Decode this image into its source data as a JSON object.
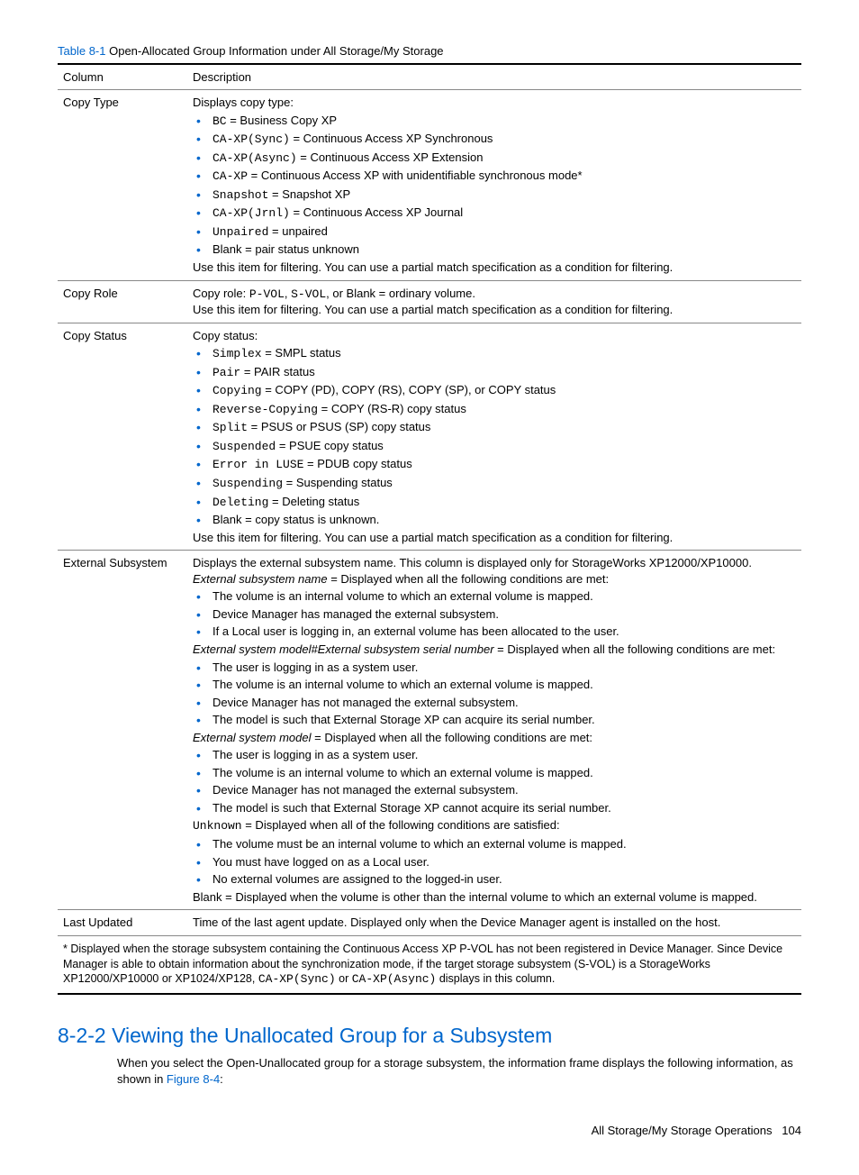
{
  "caption": {
    "ref": "Table 8-1",
    "title": "  Open-Allocated Group Information under All Storage/My Storage"
  },
  "headers": {
    "c1": "Column",
    "c2": "Description"
  },
  "rows": {
    "copyType": {
      "label": "Copy Type",
      "intro": "Displays copy type:",
      "items": {
        "i0": {
          "code": "BC",
          "text": " = Business Copy XP"
        },
        "i1": {
          "code": "CA-XP(Sync)",
          "text": " = Continuous Access XP Synchronous"
        },
        "i2": {
          "code": "CA-XP(Async)",
          "text": " = Continuous Access XP Extension"
        },
        "i3": {
          "code": "CA-XP",
          "text": " = Continuous Access XP with unidentifiable synchronous mode*"
        },
        "i4": {
          "code": "Snapshot",
          "text": " = Snapshot XP"
        },
        "i5": {
          "code": "CA-XP(Jrnl)",
          "text": " = Continuous Access XP Journal"
        },
        "i6": {
          "code": "Unpaired",
          "text": " = unpaired"
        },
        "i7": {
          "text": "Blank = pair status unknown"
        }
      },
      "tail": "Use this item for filtering. You can use a partial match specification as a condition for filtering."
    },
    "copyRole": {
      "label": "Copy Role",
      "pre": "Copy role: ",
      "c1": "P-VOL",
      "mid1": ", ",
      "c2": "S-VOL",
      "mid2": ", or Blank = ordinary volume.",
      "tail": "Use this item for filtering. You can use a partial match specification as a condition for filtering."
    },
    "copyStatus": {
      "label": "Copy Status",
      "intro": "Copy status:",
      "items": {
        "i0": {
          "code": "Simplex",
          "text": " = SMPL status"
        },
        "i1": {
          "code": "Pair",
          "text": " = PAIR status"
        },
        "i2": {
          "code": "Copying",
          "text": " = COPY (PD), COPY (RS), COPY (SP), or COPY status"
        },
        "i3": {
          "code": "Reverse-Copying",
          "text": " = COPY (RS-R) copy status"
        },
        "i4": {
          "code": "Split",
          "text": " = PSUS or PSUS (SP) copy status"
        },
        "i5": {
          "code": "Suspended",
          "text": " = PSUE copy status"
        },
        "i6": {
          "code": "Error in LUSE",
          "text": " = PDUB copy status"
        },
        "i7": {
          "code": "Suspending",
          "text": " = Suspending status"
        },
        "i8": {
          "code": "Deleting",
          "text": " = Deleting status"
        },
        "i9": {
          "text": "Blank = copy status is unknown."
        }
      },
      "tail": "Use this item for filtering. You can use a partial match specification as a condition for filtering."
    },
    "extSub": {
      "label": "External Subsystem",
      "p1": "Displays the external subsystem name. This column is displayed only for StorageWorks XP12000/XP10000.",
      "p2a": "External subsystem name",
      "p2b": " = Displayed when all the following conditions are met:",
      "l1": {
        "a": "The volume is an internal volume to which an external volume is mapped.",
        "b": "Device Manager has managed the external subsystem.",
        "c": "If a Local user is logging in, an external volume has been allocated to the user."
      },
      "p3a": "External system model#External subsystem serial number",
      "p3b": " = Displayed when all the following conditions are met:",
      "l2": {
        "a": "The user is logging in as a system user.",
        "b": "The volume is an internal volume to which an external volume is mapped.",
        "c": "Device Manager has not managed the external subsystem.",
        "d": "The model is such that External Storage XP can acquire its serial number."
      },
      "p4a": "External system model",
      "p4b": " = Displayed when all the following conditions are met:",
      "l3": {
        "a": "The user is logging in as a system user.",
        "b": "The volume is an internal volume to which an external volume is mapped.",
        "c": "Device Manager has not managed the external subsystem.",
        "d": "The model is such that External Storage XP cannot acquire its serial number."
      },
      "p5code": "Unknown",
      "p5text": " = Displayed when all of the following conditions are satisfied:",
      "l4": {
        "a": "The volume must be an internal volume to which an external volume is mapped.",
        "b": "You must have logged on as a Local user.",
        "c": "No external volumes are assigned to the logged-in user."
      },
      "p6": "Blank = Displayed when the volume is other than the internal volume to which an external volume is mapped."
    },
    "lastUpdated": {
      "label": "Last Updated",
      "text": "Time of the last agent update. Displayed only when the Device Manager agent is installed on the host."
    }
  },
  "footnote": {
    "t1": "* Displayed when the storage subsystem containing the Continuous Access XP P-VOL has not been registered in Device Manager. Since Device Manager is able to obtain information about the synchronization mode, if the target storage subsystem (S-VOL) is a StorageWorks XP12000/XP10000 or XP1024/XP128, ",
    "c1": "CA-XP(Sync)",
    "t2": " or ",
    "c2": "CA-XP(Async)",
    "t3": " displays in this column."
  },
  "section": {
    "heading": "8-2-2 Viewing the Unallocated Group for a Subsystem",
    "para1": "When you select the Open-Unallocated group for a storage subsystem, the information frame displays the following information, as shown in ",
    "link": "Figure 8-4",
    "para2": ":"
  },
  "footer": {
    "text": "All Storage/My Storage Operations",
    "page": "104"
  }
}
